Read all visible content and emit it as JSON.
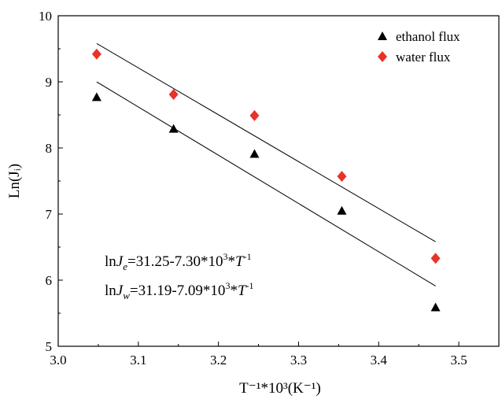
{
  "chart_data": {
    "type": "scatter",
    "xlabel": "T⁻¹*10³(K⁻¹)",
    "ylabel": "Ln(Jᵢ)",
    "xlim": [
      3.0,
      3.55
    ],
    "ylim": [
      5,
      10
    ],
    "x_ticks": [
      "3.0",
      "3.1",
      "3.2",
      "3.3",
      "3.4",
      "3.5"
    ],
    "y_ticks": [
      "5",
      "6",
      "7",
      "8",
      "9",
      "10"
    ],
    "x_tick_values": [
      3.0,
      3.1,
      3.2,
      3.3,
      3.4,
      3.5
    ],
    "y_tick_values": [
      5,
      6,
      7,
      8,
      9,
      10
    ],
    "grid": false,
    "legend_position": "top-right",
    "series": [
      {
        "name": "ethanol flux",
        "marker": "triangle",
        "color": "#000000",
        "x": [
          3.048,
          3.144,
          3.245,
          3.354,
          3.471
        ],
        "y": [
          8.77,
          8.29,
          7.91,
          7.05,
          5.59
        ]
      },
      {
        "name": "water flux",
        "marker": "diamond",
        "color": "#e8332a",
        "x": [
          3.048,
          3.144,
          3.245,
          3.354,
          3.471
        ],
        "y": [
          9.42,
          8.81,
          8.49,
          7.57,
          6.33
        ]
      }
    ],
    "fit_lines": [
      {
        "intercept": 31.25,
        "slope": -7.3,
        "x_range": [
          3.048,
          3.471
        ]
      },
      {
        "intercept": 31.19,
        "slope": -7.09,
        "x_range": [
          3.048,
          3.471
        ]
      }
    ],
    "annotations": {
      "eq_ethanol": {
        "prefix": "ln",
        "var": "J",
        "sub": "e",
        "body": "=31.25-7.30*10",
        "exp": "3",
        "mid": "*",
        "var2": "T",
        "exp2": "-1"
      },
      "eq_water": {
        "prefix": "ln",
        "var": "J",
        "sub": "w",
        "body": "=31.19-7.09*10",
        "exp": "3",
        "mid": "*",
        "var2": "T",
        "exp2": "-1"
      }
    }
  }
}
